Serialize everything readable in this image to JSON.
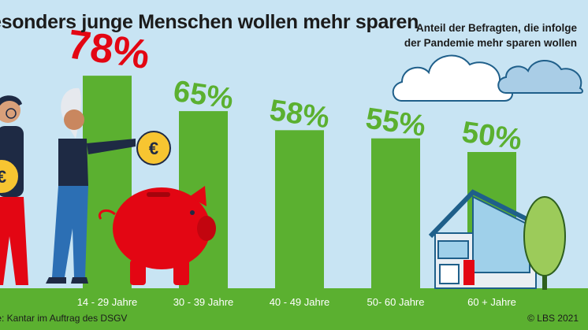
{
  "title": "esonders junge Menschen wollen mehr sparen",
  "subtitle_lines": [
    "Anteil der Befragten, die infolge",
    "der Pandemie mehr sparen wollen"
  ],
  "source": "lle: Kantar im Auftrag des DSGV",
  "copyright": "© LBS 2021",
  "colors": {
    "sky": "#c8e4f3",
    "bar": "#5bb030",
    "highlight": "#e30613",
    "grass": "#5bb030",
    "label_green": "#5bb030"
  },
  "coin_symbol": "€",
  "chart_data": {
    "type": "bar",
    "title": "",
    "xlabel": "",
    "ylabel": "",
    "ylim": [
      0,
      100
    ],
    "categories": [
      "14 - 29 Jahre",
      "30 - 39 Jahre",
      "40 - 49 Jahre",
      "50- 60 Jahre",
      "60 + Jahre"
    ],
    "values": [
      78,
      65,
      58,
      55,
      50
    ],
    "value_labels": [
      "78%",
      "65%",
      "58%",
      "55%",
      "50%"
    ],
    "highlight_index": 0,
    "grid": false,
    "legend": "none"
  }
}
